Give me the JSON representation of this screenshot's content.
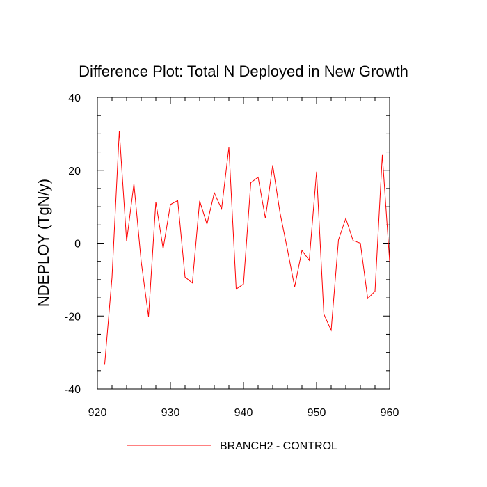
{
  "chart_data": {
    "type": "line",
    "title": "Difference Plot: Total N Deployed in New Growth",
    "xlabel": "",
    "ylabel": "NDEPLOY  (TgN/y)",
    "xlim": [
      920,
      960
    ],
    "ylim": [
      -40,
      40
    ],
    "xticks": [
      920,
      930,
      940,
      950,
      960
    ],
    "yticks": [
      -40,
      -20,
      0,
      20,
      40
    ],
    "xtick_labels": [
      "920",
      "930",
      "940",
      "950",
      "960"
    ],
    "ytick_labels": [
      "-40",
      "-20",
      "0",
      "20",
      "40"
    ],
    "grid": false,
    "legend_position": "bottom-center",
    "series": [
      {
        "name": "BRANCH2 - CONTROL",
        "color": "#ff0000",
        "x": [
          921,
          922,
          923,
          924,
          925,
          926,
          927,
          928,
          929,
          930,
          931,
          932,
          933,
          934,
          935,
          936,
          937,
          938,
          939,
          940,
          941,
          942,
          943,
          944,
          945,
          946,
          947,
          948,
          949,
          950,
          951,
          952,
          953,
          954,
          955,
          956,
          957,
          958,
          959,
          960
        ],
        "values": [
          -33.2,
          -9.4,
          30.8,
          0.5,
          16.3,
          -5.1,
          -20.2,
          11.3,
          -1.5,
          10.6,
          11.7,
          -9.3,
          -10.9,
          11.6,
          5.2,
          13.8,
          9.4,
          26.3,
          -12.6,
          -11.2,
          16.6,
          18.1,
          6.8,
          21.4,
          8.3,
          -1.6,
          -12.0,
          -2.0,
          -4.7,
          19.6,
          -19.5,
          -23.9,
          0.9,
          6.8,
          0.7,
          0.0,
          -15.2,
          -13.2,
          24.2,
          -5.0
        ]
      }
    ]
  }
}
